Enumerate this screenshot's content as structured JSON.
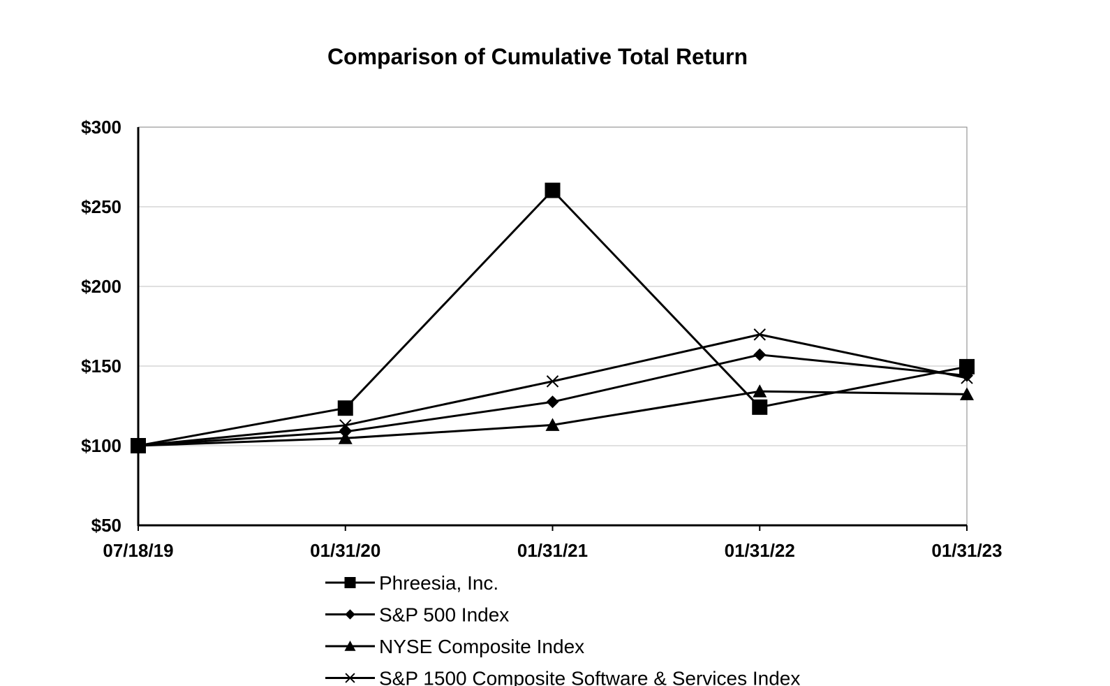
{
  "chart_data": {
    "type": "line",
    "title": "Comparison of Cumulative Total Return",
    "xlabel": "",
    "ylabel": "",
    "x": [
      "07/18/19",
      "01/31/20",
      "01/31/21",
      "01/31/22",
      "01/31/23"
    ],
    "ylim": [
      50,
      300
    ],
    "yticks": [
      50,
      100,
      150,
      200,
      250,
      300
    ],
    "ytick_labels": [
      "$50",
      "$100",
      "$150",
      "$200",
      "$250",
      "$300"
    ],
    "grid": true,
    "legend_position": "bottom",
    "series": [
      {
        "name": "Phreesia, Inc.",
        "marker": "square",
        "values": [
          100,
          123.6,
          260.3,
          124.2,
          149.6
        ]
      },
      {
        "name": "S&P 500 Index",
        "marker": "diamond",
        "values": [
          100,
          108.8,
          127.5,
          157.1,
          144.0
        ]
      },
      {
        "name": "NYSE Composite Index",
        "marker": "triangle",
        "values": [
          100,
          104.7,
          113.0,
          134.1,
          132.3
        ]
      },
      {
        "name": "S&P 1500 Composite Software & Services Index",
        "marker": "x",
        "values": [
          100,
          112.8,
          140.4,
          169.8,
          142.5
        ]
      }
    ],
    "colors": {
      "line": "#000000",
      "grid": "#c0c0c0",
      "axis": "#000000"
    }
  }
}
